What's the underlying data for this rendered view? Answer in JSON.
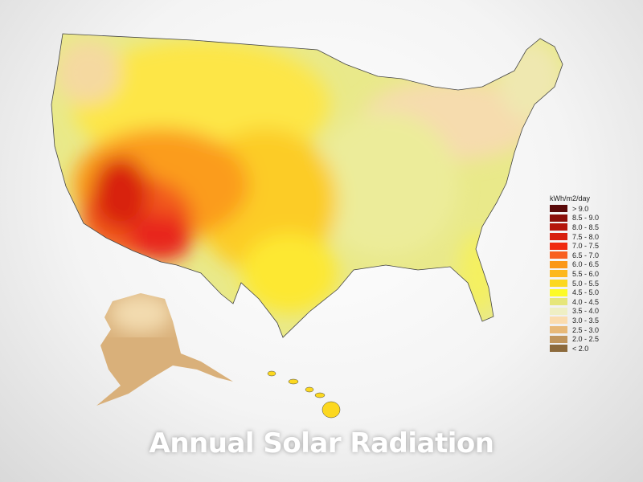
{
  "title": "Annual Solar Radiation",
  "legend": {
    "title": "kWh/m2/day",
    "items": [
      {
        "label": "> 9.0",
        "color": "#5a0a0a"
      },
      {
        "label": "8.5 - 9.0",
        "color": "#8b0f0a"
      },
      {
        "label": "8.0 - 8.5",
        "color": "#b5150c"
      },
      {
        "label": "7.5 - 8.0",
        "color": "#d8200f"
      },
      {
        "label": "7.0 - 7.5",
        "color": "#f02a10"
      },
      {
        "label": "6.5 - 7.0",
        "color": "#f86020"
      },
      {
        "label": "6.0 - 6.5",
        "color": "#fb9818"
      },
      {
        "label": "5.5 - 6.0",
        "color": "#fdb81c"
      },
      {
        "label": "5.0 - 5.5",
        "color": "#fcd820"
      },
      {
        "label": "4.5 - 5.0",
        "color": "#fdfb26"
      },
      {
        "label": "4.0 - 4.5",
        "color": "#e6e67a"
      },
      {
        "label": "3.5 - 4.0",
        "color": "#efefc4"
      },
      {
        "label": "3.0 - 3.5",
        "color": "#fbdcae"
      },
      {
        "label": "2.5 - 3.0",
        "color": "#e8b978"
      },
      {
        "label": "2.0 - 2.5",
        "color": "#c0955c"
      },
      {
        "label": "< 2.0",
        "color": "#8c6a3c"
      }
    ]
  }
}
